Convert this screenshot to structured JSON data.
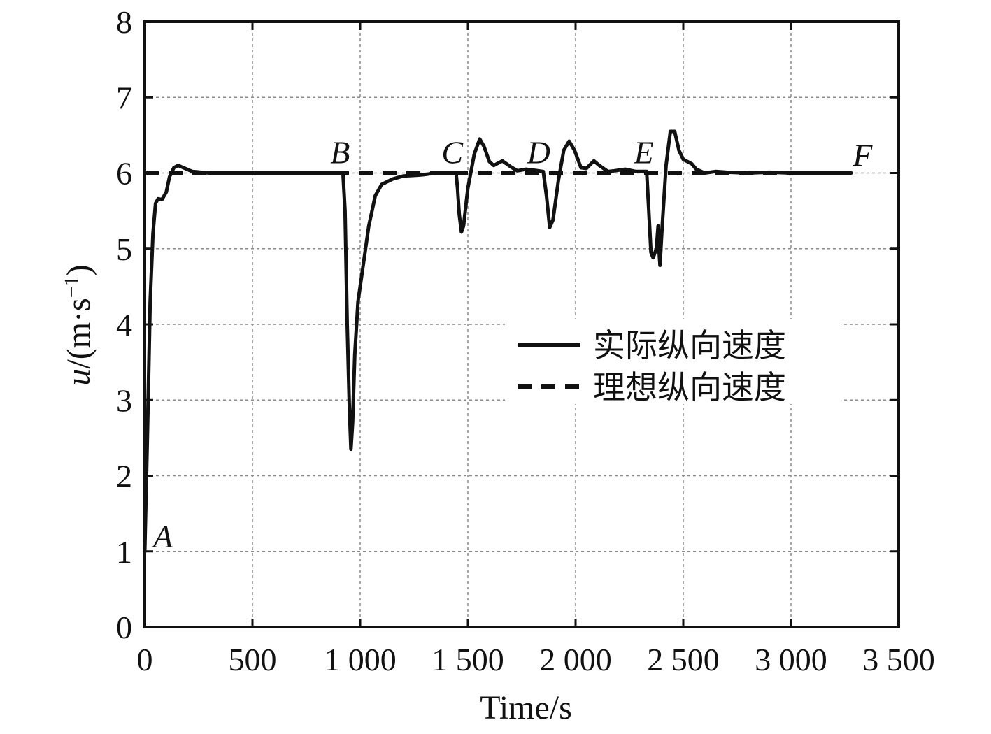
{
  "chart_data": {
    "type": "line",
    "title": "",
    "xlabel": "Time/s",
    "ylabel_var": "u",
    "ylabel_unit_open": "/(m·s",
    "ylabel_unit_sup": "−1",
    "ylabel_unit_close": ")",
    "xlim": [
      0,
      3500
    ],
    "ylim": [
      0,
      8
    ],
    "x_ticks": [
      0,
      500,
      1000,
      1500,
      2000,
      2500,
      3000,
      3500
    ],
    "x_tick_labels": [
      "0",
      "500",
      "1 000",
      "1 500",
      "2 000",
      "2 500",
      "3 000",
      "3 500"
    ],
    "y_ticks": [
      0,
      1,
      2,
      3,
      4,
      5,
      6,
      7,
      8
    ],
    "y_tick_labels": [
      "0",
      "1",
      "2",
      "3",
      "4",
      "5",
      "6",
      "7",
      "8"
    ],
    "grid": true,
    "legend_position": "center-right",
    "series": [
      {
        "name": "实际纵向速度",
        "style": "solid",
        "color": "#111111",
        "points": [
          [
            0,
            1.0
          ],
          [
            12,
            2.5
          ],
          [
            25,
            4.3
          ],
          [
            38,
            5.2
          ],
          [
            50,
            5.6
          ],
          [
            62,
            5.66
          ],
          [
            80,
            5.65
          ],
          [
            100,
            5.75
          ],
          [
            115,
            5.95
          ],
          [
            135,
            6.07
          ],
          [
            155,
            6.1
          ],
          [
            180,
            6.07
          ],
          [
            220,
            6.02
          ],
          [
            300,
            6.0
          ],
          [
            600,
            6.0
          ],
          [
            800,
            6.0
          ],
          [
            920,
            6.0
          ],
          [
            930,
            5.5
          ],
          [
            940,
            4.0
          ],
          [
            950,
            2.9
          ],
          [
            957,
            2.35
          ],
          [
            965,
            2.7
          ],
          [
            975,
            3.6
          ],
          [
            990,
            4.3
          ],
          [
            1010,
            4.7
          ],
          [
            1040,
            5.3
          ],
          [
            1070,
            5.7
          ],
          [
            1100,
            5.85
          ],
          [
            1150,
            5.92
          ],
          [
            1200,
            5.96
          ],
          [
            1260,
            5.97
          ],
          [
            1300,
            5.98
          ],
          [
            1350,
            6.0
          ],
          [
            1400,
            6.0
          ],
          [
            1445,
            6.0
          ],
          [
            1452,
            5.8
          ],
          [
            1460,
            5.45
          ],
          [
            1470,
            5.22
          ],
          [
            1480,
            5.3
          ],
          [
            1500,
            5.8
          ],
          [
            1530,
            6.25
          ],
          [
            1555,
            6.45
          ],
          [
            1575,
            6.35
          ],
          [
            1600,
            6.15
          ],
          [
            1620,
            6.1
          ],
          [
            1660,
            6.16
          ],
          [
            1700,
            6.08
          ],
          [
            1730,
            6.03
          ],
          [
            1770,
            6.05
          ],
          [
            1800,
            6.04
          ],
          [
            1850,
            6.02
          ],
          [
            1865,
            5.7
          ],
          [
            1880,
            5.28
          ],
          [
            1895,
            5.38
          ],
          [
            1920,
            5.9
          ],
          [
            1945,
            6.3
          ],
          [
            1970,
            6.42
          ],
          [
            1995,
            6.3
          ],
          [
            2025,
            6.07
          ],
          [
            2050,
            6.06
          ],
          [
            2085,
            6.16
          ],
          [
            2110,
            6.1
          ],
          [
            2150,
            6.02
          ],
          [
            2180,
            6.03
          ],
          [
            2230,
            6.05
          ],
          [
            2280,
            6.02
          ],
          [
            2330,
            6.02
          ],
          [
            2340,
            5.5
          ],
          [
            2350,
            4.95
          ],
          [
            2360,
            4.88
          ],
          [
            2375,
            5.0
          ],
          [
            2383,
            5.3
          ],
          [
            2388,
            4.95
          ],
          [
            2392,
            4.78
          ],
          [
            2400,
            5.2
          ],
          [
            2420,
            6.1
          ],
          [
            2440,
            6.55
          ],
          [
            2460,
            6.55
          ],
          [
            2480,
            6.3
          ],
          [
            2500,
            6.18
          ],
          [
            2540,
            6.12
          ],
          [
            2560,
            6.05
          ],
          [
            2600,
            6.0
          ],
          [
            2650,
            6.02
          ],
          [
            2700,
            6.01
          ],
          [
            2800,
            6.0
          ],
          [
            2900,
            6.01
          ],
          [
            3000,
            6.0
          ],
          [
            3100,
            6.0
          ],
          [
            3200,
            6.0
          ],
          [
            3280,
            6.0
          ]
        ]
      },
      {
        "name": "理想纵向速度",
        "style": "dashed",
        "color": "#111111",
        "points": [
          [
            0,
            6.0
          ],
          [
            3280,
            6.0
          ]
        ]
      }
    ],
    "annotations": [
      {
        "text": "A",
        "x": 0,
        "y": 1.0
      },
      {
        "text": "B",
        "x": 920,
        "y": 6.0
      },
      {
        "text": "C",
        "x": 1445,
        "y": 6.0
      },
      {
        "text": "D",
        "x": 1850,
        "y": 6.0
      },
      {
        "text": "E",
        "x": 2330,
        "y": 6.0
      },
      {
        "text": "F",
        "x": 3280,
        "y": 6.0
      }
    ]
  }
}
